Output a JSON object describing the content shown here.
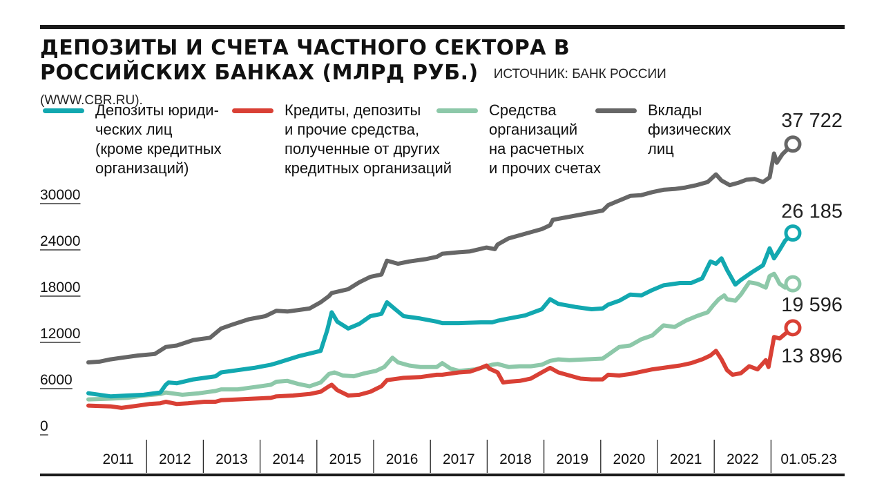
{
  "header": {
    "title": "ДЕПОЗИТЫ И СЧЕТА ЧАСТНОГО СЕКТОРА В РОССИЙСКИХ БАНКАХ (МЛРД РУБ.)",
    "source": "ИСТОЧНИК: БАНК РОССИИ (WWW.CBR.RU)."
  },
  "chart_data": {
    "type": "line",
    "ylim": [
      0,
      40000
    ],
    "yticks": [
      "30000",
      "24000",
      "18000",
      "12000",
      "6000",
      "0"
    ],
    "ytick_values": [
      30000,
      24000,
      18000,
      12000,
      6000,
      0
    ],
    "xtick_labels": [
      "2011",
      "2012",
      "2013",
      "2014",
      "2015",
      "2016",
      "2017",
      "2018",
      "2019",
      "2020",
      "2021",
      "2022",
      "01.05.23"
    ],
    "x_range": [
      2010.6,
      2023.34
    ],
    "legend": "top",
    "grid": false,
    "series": [
      {
        "name": "Депозиты юриди-\nческих лиц\n(кроме кредитных\nорганизаций)",
        "color": "#12a8b0",
        "end_label": "26 185",
        "points": [
          [
            2010.6,
            5400
          ],
          [
            2011.0,
            5000
          ],
          [
            2011.3,
            5100
          ],
          [
            2011.6,
            5200
          ],
          [
            2011.9,
            5500
          ],
          [
            2012.0,
            6500
          ],
          [
            2012.05,
            6800
          ],
          [
            2012.2,
            6700
          ],
          [
            2012.5,
            7200
          ],
          [
            2012.9,
            7600
          ],
          [
            2013.0,
            8100
          ],
          [
            2013.2,
            8300
          ],
          [
            2013.6,
            8700
          ],
          [
            2013.9,
            9100
          ],
          [
            2014.0,
            9300
          ],
          [
            2014.4,
            10200
          ],
          [
            2014.8,
            10900
          ],
          [
            2014.92,
            13600
          ],
          [
            2015.0,
            15900
          ],
          [
            2015.1,
            14700
          ],
          [
            2015.3,
            13800
          ],
          [
            2015.5,
            14400
          ],
          [
            2015.7,
            15400
          ],
          [
            2015.9,
            15700
          ],
          [
            2016.0,
            17200
          ],
          [
            2016.15,
            16300
          ],
          [
            2016.3,
            15400
          ],
          [
            2016.6,
            15100
          ],
          [
            2016.9,
            14700
          ],
          [
            2017.0,
            14500
          ],
          [
            2017.3,
            14500
          ],
          [
            2017.7,
            14600
          ],
          [
            2017.9,
            14600
          ],
          [
            2018.0,
            14800
          ],
          [
            2018.2,
            15100
          ],
          [
            2018.5,
            15500
          ],
          [
            2018.8,
            16300
          ],
          [
            2018.95,
            17600
          ],
          [
            2019.1,
            17000
          ],
          [
            2019.4,
            16600
          ],
          [
            2019.7,
            16300
          ],
          [
            2019.9,
            16400
          ],
          [
            2020.0,
            16900
          ],
          [
            2020.2,
            17400
          ],
          [
            2020.4,
            18200
          ],
          [
            2020.6,
            18100
          ],
          [
            2020.8,
            18800
          ],
          [
            2021.0,
            19400
          ],
          [
            2021.3,
            19700
          ],
          [
            2021.5,
            19700
          ],
          [
            2021.7,
            20300
          ],
          [
            2021.85,
            22500
          ],
          [
            2021.95,
            22200
          ],
          [
            2022.05,
            22900
          ],
          [
            2022.15,
            21400
          ],
          [
            2022.3,
            19500
          ],
          [
            2022.4,
            20100
          ],
          [
            2022.6,
            21100
          ],
          [
            2022.8,
            22000
          ],
          [
            2022.92,
            24200
          ],
          [
            2023.0,
            22900
          ],
          [
            2023.1,
            24000
          ],
          [
            2023.2,
            25200
          ],
          [
            2023.34,
            26185
          ]
        ]
      },
      {
        "name": "Кредиты, депозиты\nи прочие средства,\nполученные от других\nкредитных организаций",
        "color": "#d94035",
        "end_label": "13 896",
        "points": [
          [
            2010.6,
            3800
          ],
          [
            2011.0,
            3700
          ],
          [
            2011.2,
            3500
          ],
          [
            2011.4,
            3700
          ],
          [
            2011.7,
            4000
          ],
          [
            2011.9,
            4100
          ],
          [
            2012.0,
            4300
          ],
          [
            2012.2,
            4000
          ],
          [
            2012.4,
            4100
          ],
          [
            2012.7,
            4300
          ],
          [
            2012.9,
            4300
          ],
          [
            2013.0,
            4500
          ],
          [
            2013.3,
            4600
          ],
          [
            2013.6,
            4700
          ],
          [
            2013.9,
            4800
          ],
          [
            2014.0,
            5000
          ],
          [
            2014.3,
            5100
          ],
          [
            2014.6,
            5300
          ],
          [
            2014.8,
            5600
          ],
          [
            2014.95,
            6300
          ],
          [
            2015.0,
            6500
          ],
          [
            2015.1,
            5800
          ],
          [
            2015.3,
            5100
          ],
          [
            2015.5,
            5200
          ],
          [
            2015.7,
            5600
          ],
          [
            2015.9,
            6300
          ],
          [
            2016.0,
            7100
          ],
          [
            2016.3,
            7400
          ],
          [
            2016.6,
            7500
          ],
          [
            2016.9,
            7800
          ],
          [
            2017.0,
            7800
          ],
          [
            2017.3,
            8100
          ],
          [
            2017.5,
            8200
          ],
          [
            2017.7,
            8700
          ],
          [
            2017.8,
            9000
          ],
          [
            2017.85,
            8600
          ],
          [
            2018.0,
            8100
          ],
          [
            2018.1,
            6800
          ],
          [
            2018.2,
            6900
          ],
          [
            2018.4,
            7000
          ],
          [
            2018.6,
            7300
          ],
          [
            2018.8,
            8100
          ],
          [
            2018.95,
            8700
          ],
          [
            2019.1,
            8100
          ],
          [
            2019.3,
            7700
          ],
          [
            2019.5,
            7300
          ],
          [
            2019.7,
            7200
          ],
          [
            2019.9,
            7200
          ],
          [
            2020.0,
            7800
          ],
          [
            2020.2,
            7700
          ],
          [
            2020.4,
            7900
          ],
          [
            2020.6,
            8200
          ],
          [
            2020.8,
            8500
          ],
          [
            2021.0,
            8700
          ],
          [
            2021.3,
            9000
          ],
          [
            2021.5,
            9300
          ],
          [
            2021.7,
            9800
          ],
          [
            2021.85,
            10300
          ],
          [
            2021.95,
            10900
          ],
          [
            2022.05,
            9800
          ],
          [
            2022.15,
            8400
          ],
          [
            2022.25,
            7800
          ],
          [
            2022.4,
            8000
          ],
          [
            2022.55,
            8900
          ],
          [
            2022.7,
            8500
          ],
          [
            2022.85,
            9700
          ],
          [
            2022.9,
            8800
          ],
          [
            2023.0,
            12700
          ],
          [
            2023.1,
            12500
          ],
          [
            2023.2,
            13100
          ],
          [
            2023.34,
            13896
          ]
        ]
      },
      {
        "name": "Средства\nорганизаций\nна расчетных\nи прочих счетах",
        "color": "#8dc8a9",
        "end_label": "19 596",
        "points": [
          [
            2010.6,
            4600
          ],
          [
            2011.0,
            4700
          ],
          [
            2011.3,
            4800
          ],
          [
            2011.6,
            5100
          ],
          [
            2011.9,
            5300
          ],
          [
            2012.0,
            5500
          ],
          [
            2012.3,
            5200
          ],
          [
            2012.6,
            5400
          ],
          [
            2012.9,
            5700
          ],
          [
            2013.0,
            5900
          ],
          [
            2013.3,
            5900
          ],
          [
            2013.6,
            6200
          ],
          [
            2013.9,
            6500
          ],
          [
            2014.0,
            6900
          ],
          [
            2014.2,
            7000
          ],
          [
            2014.4,
            6600
          ],
          [
            2014.6,
            6300
          ],
          [
            2014.8,
            6800
          ],
          [
            2014.95,
            7900
          ],
          [
            2015.05,
            8100
          ],
          [
            2015.2,
            7700
          ],
          [
            2015.4,
            7600
          ],
          [
            2015.6,
            8000
          ],
          [
            2015.8,
            8300
          ],
          [
            2015.95,
            8800
          ],
          [
            2016.1,
            10000
          ],
          [
            2016.2,
            9400
          ],
          [
            2016.4,
            9000
          ],
          [
            2016.6,
            8800
          ],
          [
            2016.9,
            8800
          ],
          [
            2017.0,
            9300
          ],
          [
            2017.15,
            8600
          ],
          [
            2017.3,
            8300
          ],
          [
            2017.6,
            8500
          ],
          [
            2017.9,
            9100
          ],
          [
            2018.0,
            9200
          ],
          [
            2018.2,
            8800
          ],
          [
            2018.4,
            8900
          ],
          [
            2018.6,
            8900
          ],
          [
            2018.8,
            9100
          ],
          [
            2018.95,
            9600
          ],
          [
            2019.1,
            9800
          ],
          [
            2019.3,
            9700
          ],
          [
            2019.6,
            9800
          ],
          [
            2019.9,
            9900
          ],
          [
            2020.0,
            10400
          ],
          [
            2020.2,
            11400
          ],
          [
            2020.4,
            11600
          ],
          [
            2020.6,
            12400
          ],
          [
            2020.8,
            12900
          ],
          [
            2021.0,
            14200
          ],
          [
            2021.2,
            14000
          ],
          [
            2021.4,
            14800
          ],
          [
            2021.6,
            15400
          ],
          [
            2021.8,
            15900
          ],
          [
            2021.9,
            16800
          ],
          [
            2022.0,
            17600
          ],
          [
            2022.1,
            18100
          ],
          [
            2022.15,
            17600
          ],
          [
            2022.3,
            17400
          ],
          [
            2022.4,
            18200
          ],
          [
            2022.55,
            19800
          ],
          [
            2022.7,
            19600
          ],
          [
            2022.85,
            19100
          ],
          [
            2022.92,
            20600
          ],
          [
            2023.0,
            20900
          ],
          [
            2023.05,
            20300
          ],
          [
            2023.1,
            19600
          ],
          [
            2023.2,
            19100
          ],
          [
            2023.34,
            19596
          ]
        ]
      },
      {
        "name": "Вклады\nфизических\nлиц",
        "color": "#666666",
        "end_label": "37 722",
        "points": [
          [
            2010.6,
            9400
          ],
          [
            2010.8,
            9500
          ],
          [
            2011.0,
            9800
          ],
          [
            2011.2,
            10000
          ],
          [
            2011.5,
            10300
          ],
          [
            2011.8,
            10500
          ],
          [
            2012.0,
            11400
          ],
          [
            2012.2,
            11600
          ],
          [
            2012.5,
            12300
          ],
          [
            2012.8,
            12600
          ],
          [
            2013.0,
            13800
          ],
          [
            2013.2,
            14300
          ],
          [
            2013.5,
            15000
          ],
          [
            2013.8,
            15400
          ],
          [
            2014.0,
            16100
          ],
          [
            2014.2,
            16000
          ],
          [
            2014.4,
            16200
          ],
          [
            2014.6,
            16400
          ],
          [
            2014.8,
            17200
          ],
          [
            2014.95,
            18000
          ],
          [
            2015.0,
            18400
          ],
          [
            2015.3,
            18900
          ],
          [
            2015.5,
            19800
          ],
          [
            2015.7,
            20500
          ],
          [
            2015.9,
            20800
          ],
          [
            2016.0,
            22600
          ],
          [
            2016.2,
            22200
          ],
          [
            2016.4,
            22500
          ],
          [
            2016.7,
            22800
          ],
          [
            2016.9,
            23100
          ],
          [
            2017.0,
            23500
          ],
          [
            2017.3,
            23700
          ],
          [
            2017.5,
            23800
          ],
          [
            2017.8,
            24300
          ],
          [
            2017.95,
            24100
          ],
          [
            2018.0,
            24700
          ],
          [
            2018.2,
            25500
          ],
          [
            2018.5,
            26100
          ],
          [
            2018.8,
            26700
          ],
          [
            2018.95,
            27200
          ],
          [
            2019.0,
            27900
          ],
          [
            2019.3,
            28300
          ],
          [
            2019.6,
            28700
          ],
          [
            2019.9,
            29100
          ],
          [
            2020.0,
            29800
          ],
          [
            2020.2,
            30400
          ],
          [
            2020.4,
            31000
          ],
          [
            2020.6,
            31100
          ],
          [
            2020.8,
            31500
          ],
          [
            2021.0,
            31800
          ],
          [
            2021.2,
            31900
          ],
          [
            2021.4,
            32100
          ],
          [
            2021.6,
            32400
          ],
          [
            2021.8,
            32800
          ],
          [
            2021.95,
            33800
          ],
          [
            2022.05,
            33000
          ],
          [
            2022.2,
            32400
          ],
          [
            2022.35,
            32700
          ],
          [
            2022.5,
            33100
          ],
          [
            2022.65,
            33200
          ],
          [
            2022.8,
            32800
          ],
          [
            2022.92,
            33400
          ],
          [
            2023.0,
            36500
          ],
          [
            2023.05,
            35300
          ],
          [
            2023.15,
            36400
          ],
          [
            2023.25,
            37100
          ],
          [
            2023.34,
            37722
          ]
        ]
      }
    ]
  }
}
